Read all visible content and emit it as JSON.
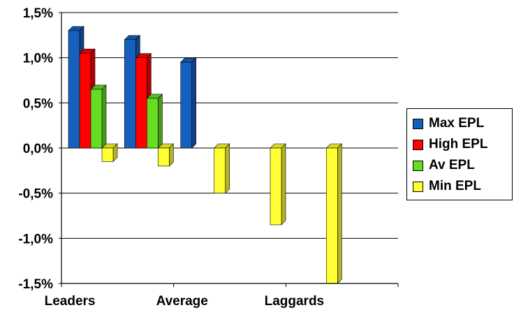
{
  "chart_data": {
    "type": "bar",
    "categories": [
      "Leaders",
      "",
      "Average",
      "",
      "Laggards",
      ""
    ],
    "series": [
      {
        "name": "Max EPL",
        "color": "#1560BD",
        "values": [
          1.3,
          1.2,
          0.95,
          null,
          null,
          null
        ]
      },
      {
        "name": "High EPL",
        "color": "#FF0000",
        "values": [
          1.05,
          1.0,
          null,
          null,
          null,
          null
        ]
      },
      {
        "name": "Av EPL",
        "color": "#66DD22",
        "values": [
          0.65,
          0.55,
          null,
          null,
          null,
          null
        ]
      },
      {
        "name": "Min EPL",
        "color": "#FFFF33",
        "values": [
          -0.15,
          -0.2,
          -0.5,
          -0.85,
          -1.5,
          null
        ]
      }
    ],
    "y_ticks": [
      "1,5%",
      "1,0%",
      "0,5%",
      "0,0%",
      "-0,5%",
      "-1,0%",
      "-1,5%"
    ],
    "ylim": [
      -1.5,
      1.5
    ],
    "y_unit": "%",
    "grid": true,
    "legend_position": "right"
  }
}
